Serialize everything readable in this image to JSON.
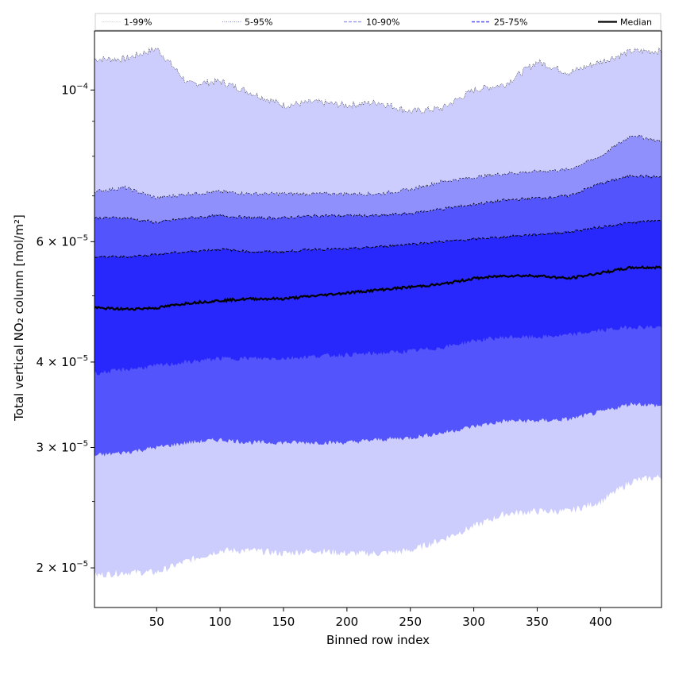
{
  "chart_data": {
    "type": "area",
    "xlabel": "Binned row index",
    "ylabel": "Total vertical NO₂ column [mol/m²]",
    "yscale": "log",
    "xlim": [
      1,
      448
    ],
    "ylim": [
      1.75e-05,
      0.000122
    ],
    "x_ticks": [
      50,
      100,
      150,
      200,
      250,
      300,
      350,
      400
    ],
    "y_ticks": [
      {
        "value": 2e-05,
        "mantissa": "2",
        "base": "10",
        "exp": "−5"
      },
      {
        "value": 3e-05,
        "mantissa": "3",
        "base": "10",
        "exp": "−5"
      },
      {
        "value": 4e-05,
        "mantissa": "4",
        "base": "10",
        "exp": "−5"
      },
      {
        "value": 6e-05,
        "mantissa": "6",
        "base": "10",
        "exp": "−5"
      },
      {
        "value": 0.0001,
        "mantissa": "",
        "base": "10",
        "exp": "−4"
      }
    ],
    "legend_position": "top",
    "x": [
      1,
      25,
      50,
      75,
      100,
      125,
      150,
      175,
      200,
      225,
      250,
      275,
      300,
      325,
      350,
      375,
      400,
      425,
      448
    ],
    "bands": [
      {
        "name": "1-99%",
        "color": "#ccccfd",
        "upper": [
          0.000111,
          0.000111,
          0.000115,
          0.000102,
          0.000103,
          9.9e-05,
          9.5e-05,
          9.6e-05,
          9.5e-05,
          9.6e-05,
          9.3e-05,
          9.4e-05,
          0.0001,
          0.000102,
          0.00011,
          0.000106,
          0.00011,
          0.000114,
          0.000114
        ],
        "lower": [
          1.95e-05,
          1.97e-05,
          1.97e-05,
          2.05e-05,
          2.12e-05,
          2.12e-05,
          2.1e-05,
          2.12e-05,
          2.1e-05,
          2.1e-05,
          2.12e-05,
          2.2e-05,
          2.3e-05,
          2.4e-05,
          2.42e-05,
          2.42e-05,
          2.5e-05,
          2.68e-05,
          2.72e-05
        ]
      },
      {
        "name": "5-95%",
        "color": "#9090fd",
        "upper": [
          7.1e-05,
          7.2e-05,
          6.95e-05,
          7.05e-05,
          7.1e-05,
          7.05e-05,
          7.05e-05,
          7.05e-05,
          7.05e-05,
          7.05e-05,
          7.15e-05,
          7.35e-05,
          7.45e-05,
          7.55e-05,
          7.6e-05,
          7.65e-05,
          8e-05,
          8.6e-05,
          8.4e-05
        ]
      },
      {
        "name": "10-90%",
        "color": "#5454fd",
        "upper": [
          6.5e-05,
          6.5e-05,
          6.4e-05,
          6.5e-05,
          6.55e-05,
          6.5e-05,
          6.5e-05,
          6.55e-05,
          6.55e-05,
          6.55e-05,
          6.6e-05,
          6.7e-05,
          6.8e-05,
          6.9e-05,
          6.95e-05,
          7e-05,
          7.3e-05,
          7.5e-05,
          7.45e-05
        ]
      },
      {
        "name": "25-75%",
        "color": "#2828fd",
        "upper": [
          5.7e-05,
          5.7e-05,
          5.75e-05,
          5.8e-05,
          5.85e-05,
          5.8e-05,
          5.8e-05,
          5.85e-05,
          5.85e-05,
          5.9e-05,
          5.95e-05,
          6e-05,
          6.05e-05,
          6.1e-05,
          6.15e-05,
          6.2e-05,
          6.3e-05,
          6.4e-05,
          6.45e-05
        ],
        "lower": [
          3.85e-05,
          3.9e-05,
          3.95e-05,
          4e-05,
          4.05e-05,
          4.05e-05,
          4.05e-05,
          4.08e-05,
          4.1e-05,
          4.12e-05,
          4.15e-05,
          4.2e-05,
          4.3e-05,
          4.35e-05,
          4.35e-05,
          4.38e-05,
          4.45e-05,
          4.5e-05,
          4.5e-05
        ]
      }
    ],
    "band_lowers_5_95": [
      3.25e-05,
      3.3e-05,
      3.35e-05,
      3.38e-05,
      3.4e-05,
      3.38e-05,
      3.4e-05,
      3.4e-05,
      3.42e-05,
      3.45e-05,
      3.45e-05,
      3.5e-05,
      3.55e-05,
      3.6e-05,
      3.58e-05,
      3.62e-05,
      3.68e-05,
      3.75e-05,
      3.75e-05
    ],
    "band_lowers_10_90": [
      2.92e-05,
      2.95e-05,
      3e-05,
      3.05e-05,
      3.08e-05,
      3.05e-05,
      3.05e-05,
      3.05e-05,
      3.05e-05,
      3.08e-05,
      3.1e-05,
      3.15e-05,
      3.22e-05,
      3.28e-05,
      3.28e-05,
      3.3e-05,
      3.38e-05,
      3.48e-05,
      3.45e-05
    ],
    "median": {
      "name": "Median",
      "color": "#000000",
      "values": [
        4.8e-05,
        4.78e-05,
        4.8e-05,
        4.88e-05,
        4.92e-05,
        4.95e-05,
        4.95e-05,
        5e-05,
        5.05e-05,
        5.1e-05,
        5.15e-05,
        5.2e-05,
        5.3e-05,
        5.35e-05,
        5.35e-05,
        5.3e-05,
        5.4e-05,
        5.5e-05,
        5.5e-05
      ]
    },
    "legend": [
      {
        "label": "1-99%",
        "style": "dotted",
        "color": "#c8c8c8",
        "width": 1
      },
      {
        "label": "5-95%",
        "style": "dotted",
        "color": "#8080c0",
        "width": 1
      },
      {
        "label": "10-90%",
        "style": "dashed",
        "color": "#8c8cf0",
        "width": 1.2
      },
      {
        "label": "25-75%",
        "style": "dashed",
        "color": "#5050f0",
        "width": 1.5
      },
      {
        "label": "Median",
        "style": "solid",
        "color": "#000000",
        "width": 2.2
      }
    ]
  }
}
